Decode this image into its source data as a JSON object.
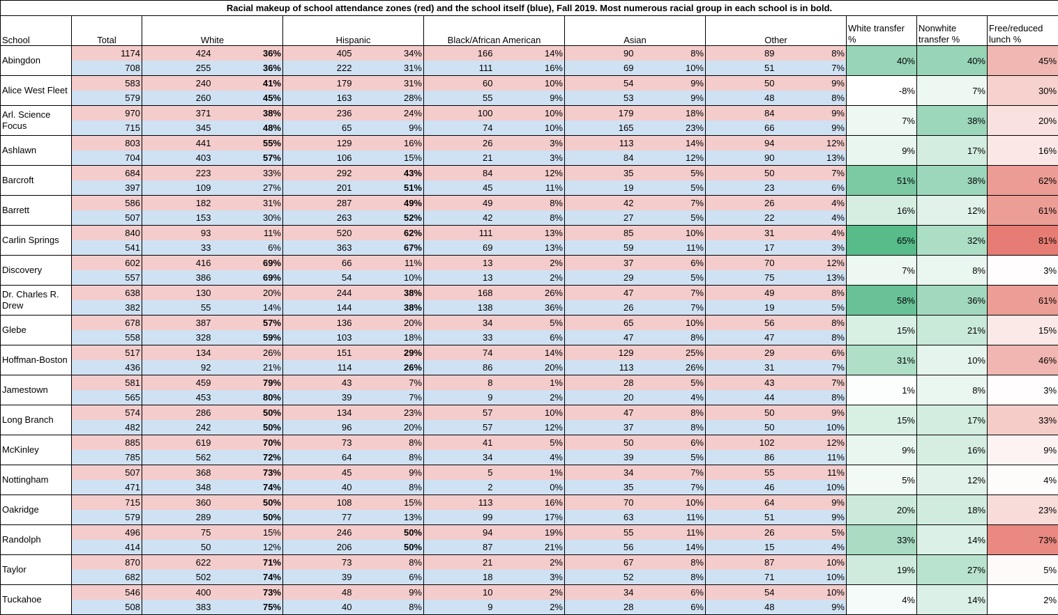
{
  "title": "Racial makeup of school attendance zones (red) and the school itself (blue), Fall 2019. Most numerous racial group in each school is in bold.",
  "headers": {
    "school": "School",
    "total": "Total",
    "white": "White",
    "hispanic": "Hispanic",
    "black": "Black/African American",
    "asian": "Asian",
    "other": "Other",
    "white_transfer": "White transfer %",
    "nonwhite_transfer": "Nonwhite transfer %",
    "frl": "Free/reduced lunch %"
  },
  "colors": {
    "zone_row": "#f4cccc",
    "school_row": "#cfe2f3",
    "transfer_scale": "#57bb8a",
    "lunch_scale": "#e67c73"
  },
  "rows": [
    {
      "school": "Abingdon",
      "zone": [
        "1174",
        "424",
        "36%",
        "405",
        "34%",
        "166",
        "14%",
        "90",
        "8%",
        "89",
        "8%"
      ],
      "attend": [
        "708",
        "255",
        "36%",
        "222",
        "31%",
        "111",
        "16%",
        "69",
        "10%",
        "51",
        "7%"
      ],
      "zone_bold": "white",
      "attend_bold": "white",
      "wt": "40%",
      "nt": "40%",
      "frl": "45%"
    },
    {
      "school": "Alice West Fleet",
      "zone": [
        "583",
        "240",
        "41%",
        "179",
        "31%",
        "60",
        "10%",
        "54",
        "9%",
        "50",
        "9%"
      ],
      "attend": [
        "579",
        "260",
        "45%",
        "163",
        "28%",
        "55",
        "9%",
        "53",
        "9%",
        "48",
        "8%"
      ],
      "zone_bold": "white",
      "attend_bold": "white",
      "wt": "-8%",
      "nt": "7%",
      "frl": "30%"
    },
    {
      "school": "Arl. Science Focus",
      "zone": [
        "970",
        "371",
        "38%",
        "236",
        "24%",
        "100",
        "10%",
        "179",
        "18%",
        "84",
        "9%"
      ],
      "attend": [
        "715",
        "345",
        "48%",
        "65",
        "9%",
        "74",
        "10%",
        "165",
        "23%",
        "66",
        "9%"
      ],
      "zone_bold": "white",
      "attend_bold": "white",
      "wt": "7%",
      "nt": "38%",
      "frl": "20%"
    },
    {
      "school": "Ashlawn",
      "zone": [
        "803",
        "441",
        "55%",
        "129",
        "16%",
        "26",
        "3%",
        "113",
        "14%",
        "94",
        "12%"
      ],
      "attend": [
        "704",
        "403",
        "57%",
        "106",
        "15%",
        "21",
        "3%",
        "84",
        "12%",
        "90",
        "13%"
      ],
      "zone_bold": "white",
      "attend_bold": "white",
      "wt": "9%",
      "nt": "17%",
      "frl": "16%"
    },
    {
      "school": "Barcroft",
      "zone": [
        "684",
        "223",
        "33%",
        "292",
        "43%",
        "84",
        "12%",
        "35",
        "5%",
        "50",
        "7%"
      ],
      "attend": [
        "397",
        "109",
        "27%",
        "201",
        "51%",
        "45",
        "11%",
        "19",
        "5%",
        "23",
        "6%"
      ],
      "zone_bold": "hispanic",
      "attend_bold": "hispanic",
      "wt": "51%",
      "nt": "38%",
      "frl": "62%"
    },
    {
      "school": "Barrett",
      "zone": [
        "586",
        "182",
        "31%",
        "287",
        "49%",
        "49",
        "8%",
        "42",
        "7%",
        "26",
        "4%"
      ],
      "attend": [
        "507",
        "153",
        "30%",
        "263",
        "52%",
        "42",
        "8%",
        "27",
        "5%",
        "22",
        "4%"
      ],
      "zone_bold": "hispanic",
      "attend_bold": "hispanic",
      "wt": "16%",
      "nt": "12%",
      "frl": "61%"
    },
    {
      "school": "Carlin Springs",
      "zone": [
        "840",
        "93",
        "11%",
        "520",
        "62%",
        "111",
        "13%",
        "85",
        "10%",
        "31",
        "4%"
      ],
      "attend": [
        "541",
        "33",
        "6%",
        "363",
        "67%",
        "69",
        "13%",
        "59",
        "11%",
        "17",
        "3%"
      ],
      "zone_bold": "hispanic",
      "attend_bold": "hispanic",
      "wt": "65%",
      "nt": "32%",
      "frl": "81%"
    },
    {
      "school": "Discovery",
      "zone": [
        "602",
        "416",
        "69%",
        "66",
        "11%",
        "13",
        "2%",
        "37",
        "6%",
        "70",
        "12%"
      ],
      "attend": [
        "557",
        "386",
        "69%",
        "54",
        "10%",
        "13",
        "2%",
        "29",
        "5%",
        "75",
        "13%"
      ],
      "zone_bold": "white",
      "attend_bold": "white",
      "wt": "7%",
      "nt": "8%",
      "frl": "3%"
    },
    {
      "school": "Dr. Charles R. Drew",
      "zone": [
        "638",
        "130",
        "20%",
        "244",
        "38%",
        "168",
        "26%",
        "47",
        "7%",
        "49",
        "8%"
      ],
      "attend": [
        "382",
        "55",
        "14%",
        "144",
        "38%",
        "138",
        "36%",
        "26",
        "7%",
        "19",
        "5%"
      ],
      "zone_bold": "hispanic",
      "attend_bold": "hispanic",
      "wt": "58%",
      "nt": "36%",
      "frl": "61%"
    },
    {
      "school": "Glebe",
      "zone": [
        "678",
        "387",
        "57%",
        "136",
        "20%",
        "34",
        "5%",
        "65",
        "10%",
        "56",
        "8%"
      ],
      "attend": [
        "558",
        "328",
        "59%",
        "103",
        "18%",
        "33",
        "6%",
        "47",
        "8%",
        "47",
        "8%"
      ],
      "zone_bold": "white",
      "attend_bold": "white",
      "wt": "15%",
      "nt": "21%",
      "frl": "15%"
    },
    {
      "school": "Hoffman-Boston",
      "zone": [
        "517",
        "134",
        "26%",
        "151",
        "29%",
        "74",
        "14%",
        "129",
        "25%",
        "29",
        "6%"
      ],
      "attend": [
        "436",
        "92",
        "21%",
        "114",
        "26%",
        "86",
        "20%",
        "113",
        "26%",
        "31",
        "7%"
      ],
      "zone_bold": "hispanic",
      "attend_bold": "hispanic",
      "wt": "31%",
      "nt": "10%",
      "frl": "46%"
    },
    {
      "school": "Jamestown",
      "zone": [
        "581",
        "459",
        "79%",
        "43",
        "7%",
        "8",
        "1%",
        "28",
        "5%",
        "43",
        "7%"
      ],
      "attend": [
        "565",
        "453",
        "80%",
        "39",
        "7%",
        "9",
        "2%",
        "20",
        "4%",
        "44",
        "8%"
      ],
      "zone_bold": "white",
      "attend_bold": "white",
      "wt": "1%",
      "nt": "8%",
      "frl": "3%"
    },
    {
      "school": "Long Branch",
      "zone": [
        "574",
        "286",
        "50%",
        "134",
        "23%",
        "57",
        "10%",
        "47",
        "8%",
        "50",
        "9%"
      ],
      "attend": [
        "482",
        "242",
        "50%",
        "96",
        "20%",
        "57",
        "12%",
        "37",
        "8%",
        "50",
        "10%"
      ],
      "zone_bold": "white",
      "attend_bold": "white",
      "wt": "15%",
      "nt": "17%",
      "frl": "33%"
    },
    {
      "school": "McKinley",
      "zone": [
        "885",
        "619",
        "70%",
        "73",
        "8%",
        "41",
        "5%",
        "50",
        "6%",
        "102",
        "12%"
      ],
      "attend": [
        "785",
        "562",
        "72%",
        "64",
        "8%",
        "34",
        "4%",
        "39",
        "5%",
        "86",
        "11%"
      ],
      "zone_bold": "white",
      "attend_bold": "white",
      "wt": "9%",
      "nt": "16%",
      "frl": "9%"
    },
    {
      "school": "Nottingham",
      "zone": [
        "507",
        "368",
        "73%",
        "45",
        "9%",
        "5",
        "1%",
        "34",
        "7%",
        "55",
        "11%"
      ],
      "attend": [
        "471",
        "348",
        "74%",
        "40",
        "8%",
        "2",
        "0%",
        "35",
        "7%",
        "46",
        "10%"
      ],
      "zone_bold": "white",
      "attend_bold": "white",
      "wt": "5%",
      "nt": "12%",
      "frl": "4%"
    },
    {
      "school": "Oakridge",
      "zone": [
        "715",
        "360",
        "50%",
        "108",
        "15%",
        "113",
        "16%",
        "70",
        "10%",
        "64",
        "9%"
      ],
      "attend": [
        "579",
        "289",
        "50%",
        "77",
        "13%",
        "99",
        "17%",
        "63",
        "11%",
        "51",
        "9%"
      ],
      "zone_bold": "white",
      "attend_bold": "white",
      "wt": "20%",
      "nt": "18%",
      "frl": "23%"
    },
    {
      "school": "Randolph",
      "zone": [
        "496",
        "75",
        "15%",
        "246",
        "50%",
        "94",
        "19%",
        "55",
        "11%",
        "26",
        "5%"
      ],
      "attend": [
        "414",
        "50",
        "12%",
        "206",
        "50%",
        "87",
        "21%",
        "56",
        "14%",
        "15",
        "4%"
      ],
      "zone_bold": "hispanic",
      "attend_bold": "hispanic",
      "wt": "33%",
      "nt": "14%",
      "frl": "73%"
    },
    {
      "school": "Taylor",
      "zone": [
        "870",
        "622",
        "71%",
        "73",
        "8%",
        "21",
        "2%",
        "67",
        "8%",
        "87",
        "10%"
      ],
      "attend": [
        "682",
        "502",
        "74%",
        "39",
        "6%",
        "18",
        "3%",
        "52",
        "8%",
        "71",
        "10%"
      ],
      "zone_bold": "white",
      "attend_bold": "white",
      "wt": "19%",
      "nt": "27%",
      "frl": "5%"
    },
    {
      "school": "Tuckahoe",
      "zone": [
        "546",
        "400",
        "73%",
        "48",
        "9%",
        "10",
        "2%",
        "34",
        "6%",
        "54",
        "10%"
      ],
      "attend": [
        "508",
        "383",
        "75%",
        "40",
        "8%",
        "9",
        "2%",
        "28",
        "6%",
        "48",
        "9%"
      ],
      "zone_bold": "white",
      "attend_bold": "white",
      "wt": "4%",
      "nt": "14%",
      "frl": "2%"
    }
  ]
}
